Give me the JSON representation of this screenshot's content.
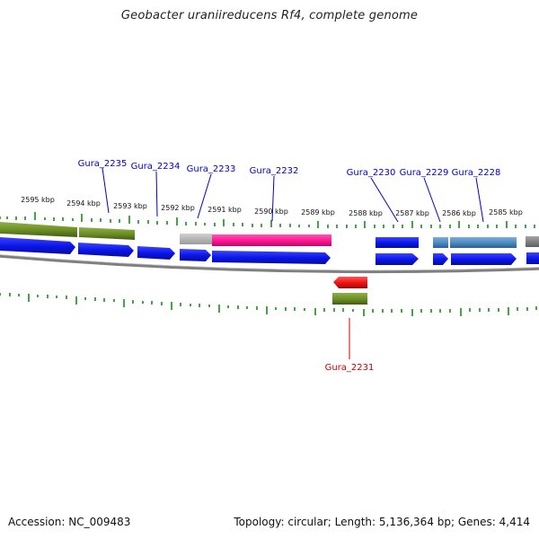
{
  "title": "Geobacter uraniireducens Rf4, complete genome",
  "accession_text": "Accession: NC_009483",
  "summary_text": "Topology: circular; Length: 5,136,364 bp; Genes: 4,414",
  "colors": {
    "green": "#6b8e23",
    "blue": "#0a14e6",
    "pink": "#ff1493",
    "gray": "#b3b3b3",
    "steelblue": "#4a87bf",
    "darkgray": "#8a8a8a",
    "red": "#ee1010",
    "tick": "#1a8a1a",
    "backbone": "#7f7f7f",
    "label_blue": "#0000cc",
    "label_red": "#cc0000"
  },
  "axis": {
    "ticks": [
      "2595 kbp",
      "2594 kbp",
      "2593 kbp",
      "2592 kbp",
      "2591 kbp",
      "2590 kbp",
      "2589 kbp",
      "2588 kbp",
      "2587 kbp",
      "2586 kbp",
      "2585 kbp"
    ]
  },
  "tracks": {
    "cog_outer": [
      {
        "name": "cog-segment-1",
        "color": "green"
      },
      {
        "name": "cog-segment-2",
        "color": "green"
      },
      {
        "name": "cog-segment-3",
        "color": "gray"
      },
      {
        "name": "cog-segment-4",
        "color": "pink"
      },
      {
        "name": "cog-segment-5",
        "color": "blue"
      },
      {
        "name": "cog-segment-6",
        "color": "steelblue"
      },
      {
        "name": "cog-segment-7",
        "color": "steelblue"
      },
      {
        "name": "cog-segment-8",
        "color": "darkgray"
      }
    ],
    "genes_forward": [
      {
        "name": "gene-segment-1"
      },
      {
        "name": "gene-segment-2"
      },
      {
        "name": "gene-segment-3"
      },
      {
        "name": "gene-segment-4"
      },
      {
        "name": "gene-segment-5"
      },
      {
        "name": "gene-segment-6"
      },
      {
        "name": "gene-segment-7"
      },
      {
        "name": "gene-segment-8"
      },
      {
        "name": "gene-segment-9"
      },
      {
        "name": "gene-segment-10"
      }
    ]
  },
  "gene_labels": [
    {
      "id": "Gura_2235",
      "color": "label_blue"
    },
    {
      "id": "Gura_2234",
      "color": "label_blue"
    },
    {
      "id": "Gura_2233",
      "color": "label_blue"
    },
    {
      "id": "Gura_2232",
      "color": "label_blue"
    },
    {
      "id": "Gura_2230",
      "color": "label_blue"
    },
    {
      "id": "Gura_2229",
      "color": "label_blue"
    },
    {
      "id": "Gura_2228",
      "color": "label_blue"
    },
    {
      "id": "Gura_2231",
      "color": "label_red"
    }
  ]
}
